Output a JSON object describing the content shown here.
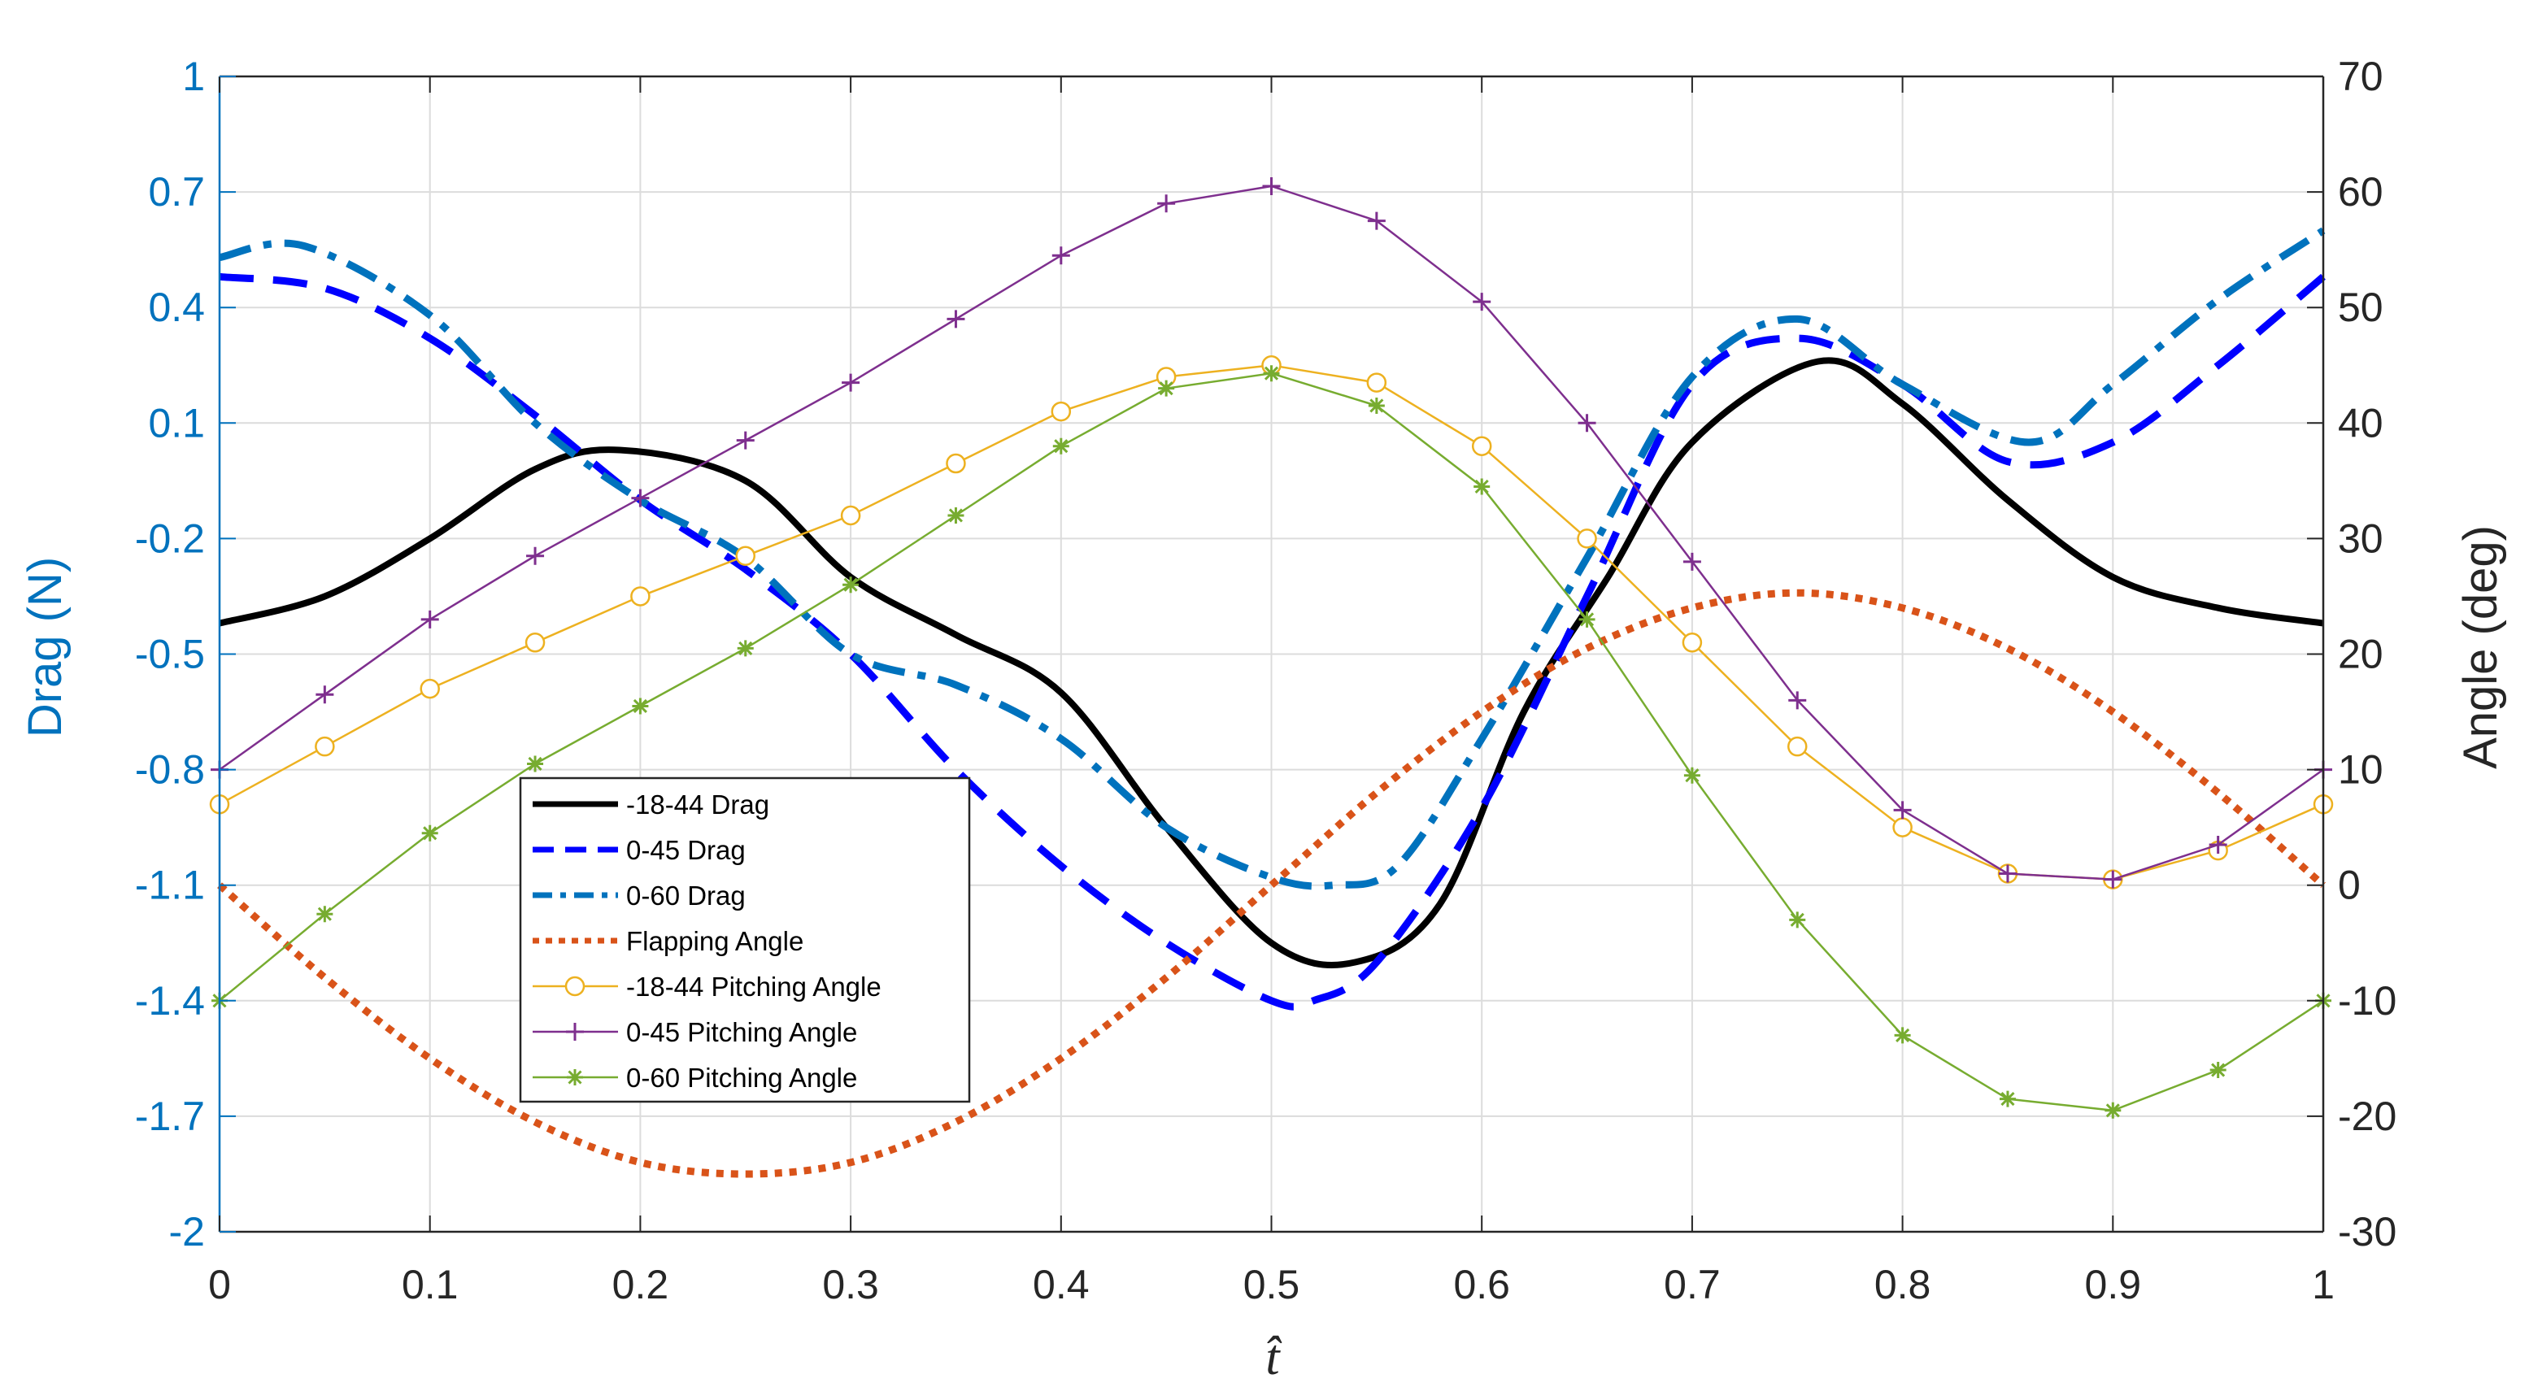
{
  "chart_data": {
    "type": "line",
    "title": "",
    "xlabel": "t̂",
    "ylabel_left": "Drag (N)",
    "ylabel_right": "Angle (deg)",
    "xlim": [
      0,
      1
    ],
    "ylim_left": [
      -2,
      1
    ],
    "ylim_right": [
      -30,
      70
    ],
    "grid": true,
    "legend_position": "lower-left-center",
    "x_ticks": [
      "0",
      "0.1",
      "0.2",
      "0.3",
      "0.4",
      "0.5",
      "0.6",
      "0.7",
      "0.8",
      "0.9",
      "1"
    ],
    "y_left_ticks": [
      "1",
      "0.7",
      "0.4",
      "0.1",
      "-0.2",
      "-0.5",
      "-0.8",
      "-1.1",
      "-1.4",
      "-1.7",
      "-2"
    ],
    "y_right_ticks": [
      "70",
      "60",
      "50",
      "40",
      "30",
      "20",
      "10",
      "0",
      "-10",
      "-20",
      "-30"
    ],
    "colors": {
      "left_axis": "#0072BD",
      "right_axis": "#262626",
      "drag_18_44": "#000000",
      "drag_0_45": "#0000FF",
      "drag_0_60": "#0072BD",
      "flapping": "#D95319",
      "pitch_18_44": "#EDB120",
      "pitch_0_45": "#7E2F8E",
      "pitch_0_60": "#77AC30"
    },
    "series": [
      {
        "name": "-18-44 Drag",
        "axis": "left",
        "style": "solid",
        "marker": "none",
        "x": [
          0,
          0.05,
          0.1,
          0.15,
          0.19,
          0.25,
          0.3,
          0.35,
          0.4,
          0.45,
          0.5,
          0.54,
          0.58,
          0.62,
          0.66,
          0.7,
          0.76,
          0.8,
          0.85,
          0.9,
          0.95,
          1
        ],
        "y": [
          -0.42,
          -0.35,
          -0.2,
          -0.02,
          0.03,
          -0.05,
          -0.3,
          -0.45,
          -0.6,
          -0.95,
          -1.25,
          -1.3,
          -1.15,
          -0.65,
          -0.3,
          0.05,
          0.26,
          0.15,
          -0.1,
          -0.3,
          -0.38,
          -0.42
        ]
      },
      {
        "name": "0-45 Drag",
        "axis": "left",
        "style": "dashed",
        "marker": "none",
        "x": [
          0,
          0.05,
          0.1,
          0.15,
          0.2,
          0.25,
          0.3,
          0.35,
          0.4,
          0.45,
          0.5,
          0.52,
          0.55,
          0.6,
          0.65,
          0.7,
          0.75,
          0.8,
          0.85,
          0.9,
          0.95,
          1
        ],
        "y": [
          0.48,
          0.45,
          0.32,
          0.12,
          -0.1,
          -0.28,
          -0.5,
          -0.8,
          -1.05,
          -1.25,
          -1.4,
          -1.4,
          -1.3,
          -0.9,
          -0.35,
          0.2,
          0.32,
          0.2,
          0.0,
          0.05,
          0.25,
          0.48
        ]
      },
      {
        "name": "0-60 Drag",
        "axis": "left",
        "style": "dashdot",
        "marker": "none",
        "x": [
          0,
          0.04,
          0.1,
          0.15,
          0.2,
          0.25,
          0.3,
          0.35,
          0.4,
          0.45,
          0.5,
          0.53,
          0.56,
          0.6,
          0.65,
          0.7,
          0.75,
          0.8,
          0.86,
          0.9,
          0.95,
          1
        ],
        "y": [
          0.53,
          0.56,
          0.38,
          0.1,
          -0.1,
          -0.25,
          -0.5,
          -0.58,
          -0.72,
          -0.95,
          -1.08,
          -1.1,
          -1.05,
          -0.72,
          -0.25,
          0.22,
          0.37,
          0.2,
          0.05,
          0.2,
          0.42,
          0.6
        ]
      },
      {
        "name": "Flapping Angle",
        "axis": "right",
        "style": "dotted",
        "marker": "none",
        "x": [
          0,
          0.05,
          0.1,
          0.15,
          0.2,
          0.25,
          0.3,
          0.35,
          0.4,
          0.45,
          0.5,
          0.55,
          0.6,
          0.65,
          0.7,
          0.75,
          0.8,
          0.85,
          0.9,
          0.95,
          1
        ],
        "y": [
          0,
          -8,
          -15,
          -20.5,
          -24,
          -25,
          -24,
          -20.5,
          -15,
          -8,
          0,
          8,
          15,
          20.5,
          24,
          25.3,
          24,
          20.5,
          15,
          8,
          0
        ]
      },
      {
        "name": "-18-44 Pitching Angle",
        "axis": "right",
        "style": "solid",
        "marker": "o",
        "x": [
          0,
          0.05,
          0.1,
          0.15,
          0.2,
          0.25,
          0.3,
          0.35,
          0.4,
          0.45,
          0.5,
          0.55,
          0.6,
          0.65,
          0.7,
          0.75,
          0.8,
          0.85,
          0.9,
          0.95,
          1
        ],
        "y": [
          7,
          12,
          17,
          21,
          25,
          28.5,
          32,
          36.5,
          41,
          44,
          45,
          43.5,
          38,
          30,
          21,
          12,
          5,
          1,
          0.5,
          3,
          7
        ]
      },
      {
        "name": "0-45 Pitching Angle",
        "axis": "right",
        "style": "solid",
        "marker": "+",
        "x": [
          0,
          0.05,
          0.1,
          0.15,
          0.2,
          0.25,
          0.3,
          0.35,
          0.4,
          0.45,
          0.5,
          0.55,
          0.6,
          0.65,
          0.7,
          0.75,
          0.8,
          0.85,
          0.9,
          0.95,
          1
        ],
        "y": [
          10,
          16.5,
          23,
          28.5,
          33.5,
          38.5,
          43.5,
          49,
          54.5,
          59,
          60.5,
          57.5,
          50.5,
          40,
          28,
          16,
          6.5,
          1,
          0.5,
          3.5,
          10
        ]
      },
      {
        "name": "0-60 Pitching Angle",
        "axis": "right",
        "style": "solid",
        "marker": "*",
        "x": [
          0,
          0.05,
          0.1,
          0.15,
          0.2,
          0.25,
          0.3,
          0.35,
          0.4,
          0.45,
          0.5,
          0.55,
          0.6,
          0.65,
          0.7,
          0.75,
          0.8,
          0.85,
          0.9,
          0.95,
          1
        ],
        "y": [
          -10,
          -2.5,
          4.5,
          10.5,
          15.5,
          20.5,
          26,
          32,
          38,
          43,
          44.3,
          41.5,
          34.5,
          23,
          9.5,
          -3,
          -13,
          -18.5,
          -19.5,
          -16,
          -10
        ]
      }
    ]
  }
}
